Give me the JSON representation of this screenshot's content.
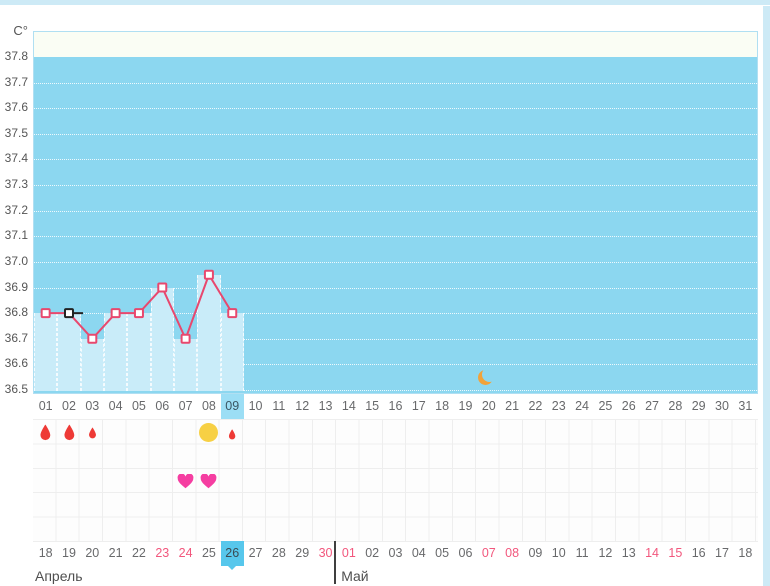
{
  "colors": {
    "frame": "#cdeaf6",
    "plot_border": "#b0dff2",
    "plot_upper_band": "#fafdf4",
    "plot_fill": "#8cd7f0",
    "bar_fill": "#c9ecf9",
    "line": "#e8486e",
    "cursor": "#222222",
    "tick_text": "#555555",
    "day_text": "#68696b",
    "day_highlight_bg": "#9cdef5",
    "day_highlight_text": "#3b5663",
    "today_bg": "#57c7ec",
    "today_text": "#3b4a52",
    "weekend_text": "#f2577d",
    "grid_line": "#eeeeee",
    "divider": "#3f3f3f",
    "drop": "#ee3a36",
    "heart": "#f53ea1",
    "sun": "#f7d044",
    "moon": "#f1a33b"
  },
  "chart_data": {
    "type": "line",
    "title": "",
    "ylabel": "C°",
    "ylim": [
      36.5,
      37.8
    ],
    "y_ticks": [
      "37.8",
      "37.7",
      "37.6",
      "37.5",
      "37.4",
      "37.3",
      "37.2",
      "37.1",
      "37.0",
      "36.9",
      "36.8",
      "36.7",
      "36.6",
      "36.5"
    ],
    "categories": [
      "01",
      "02",
      "03",
      "04",
      "05",
      "06",
      "07",
      "08",
      "09",
      "10",
      "11",
      "12",
      "13",
      "14",
      "15",
      "16",
      "17",
      "18",
      "19",
      "20",
      "21",
      "22",
      "23",
      "24",
      "25",
      "26",
      "27",
      "28",
      "29",
      "30",
      "31"
    ],
    "grid": "dotted-white",
    "legend_position": "none",
    "series": [
      {
        "name": "basal-temperature",
        "days": [
          1,
          2,
          3,
          4,
          5,
          6,
          7,
          8,
          9
        ],
        "values": [
          36.8,
          36.8,
          36.7,
          36.8,
          36.8,
          36.9,
          36.7,
          36.95,
          36.8
        ]
      }
    ],
    "highlighted_day": "09",
    "cursor_day": 2,
    "moon_day": 20
  },
  "events": {
    "rows": 5,
    "icons": [
      {
        "type": "drop",
        "day": 1,
        "row": 1,
        "intensity": "heavy"
      },
      {
        "type": "drop",
        "day": 2,
        "row": 1,
        "intensity": "heavy"
      },
      {
        "type": "drop",
        "day": 3,
        "row": 1,
        "intensity": "light"
      },
      {
        "type": "sun",
        "day": 8,
        "row": 1
      },
      {
        "type": "drop",
        "day": 9,
        "row": 1,
        "intensity": "spotting"
      },
      {
        "type": "heart",
        "day": 7,
        "row": 3
      },
      {
        "type": "heart",
        "day": 8,
        "row": 3
      }
    ]
  },
  "calendar": {
    "months": [
      {
        "label": "Апрель",
        "start_col": 1
      },
      {
        "label": "Май",
        "start_col": 14
      }
    ],
    "dates": [
      {
        "t": "18"
      },
      {
        "t": "19"
      },
      {
        "t": "20"
      },
      {
        "t": "21"
      },
      {
        "t": "22"
      },
      {
        "t": "23",
        "w": 1
      },
      {
        "t": "24",
        "w": 1
      },
      {
        "t": "25"
      },
      {
        "t": "26",
        "today": 1
      },
      {
        "t": "27"
      },
      {
        "t": "28"
      },
      {
        "t": "29"
      },
      {
        "t": "30",
        "w": 1
      },
      {
        "t": "01",
        "w": 1
      },
      {
        "t": "02"
      },
      {
        "t": "03"
      },
      {
        "t": "04"
      },
      {
        "t": "05"
      },
      {
        "t": "06"
      },
      {
        "t": "07",
        "w": 1
      },
      {
        "t": "08",
        "w": 1
      },
      {
        "t": "09"
      },
      {
        "t": "10"
      },
      {
        "t": "11"
      },
      {
        "t": "12"
      },
      {
        "t": "13"
      },
      {
        "t": "14",
        "w": 1
      },
      {
        "t": "15",
        "w": 1
      },
      {
        "t": "16"
      },
      {
        "t": "17"
      },
      {
        "t": "18"
      }
    ]
  }
}
